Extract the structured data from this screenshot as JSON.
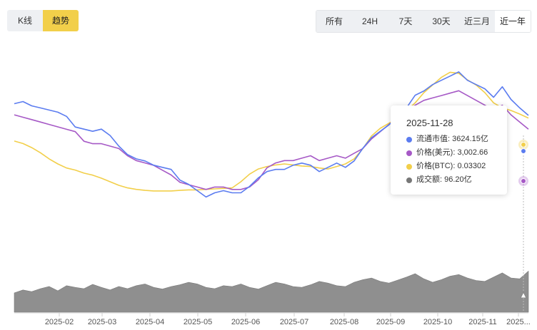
{
  "tabs_left": [
    {
      "label": "K线",
      "active": false
    },
    {
      "label": "趋势",
      "active": true
    }
  ],
  "tabs_right": [
    {
      "label": "所有",
      "active": false
    },
    {
      "label": "24H",
      "active": false
    },
    {
      "label": "7天",
      "active": false
    },
    {
      "label": "30天",
      "active": false
    },
    {
      "label": "近三月",
      "active": false
    },
    {
      "label": "近一年",
      "active": true
    }
  ],
  "tooltip": {
    "date": "2025-11-28",
    "rows": [
      {
        "label": "流通市值:",
        "value": "3624.15亿",
        "color": "#5b7cf0"
      },
      {
        "label": "价格(美元):",
        "value": "3,002.66",
        "color": "#a659c6"
      },
      {
        "label": "价格(BTC):",
        "value": "0.03302",
        "color": "#f2cf4a"
      },
      {
        "label": "成交额:",
        "value": "96.20亿",
        "color": "#777777"
      }
    ]
  },
  "chart_data": {
    "type": "line",
    "x_tick_labels": [
      "2025-02",
      "2025-03",
      "2025-04",
      "2025-05",
      "2025-06",
      "2025-07",
      "2025-08",
      "2025-09",
      "2025-10",
      "2025-11",
      "2025..."
    ],
    "axes_visible": false,
    "grid": false,
    "series": [
      {
        "name": "流通市值",
        "color": "#5b7cf0",
        "values": [
          3900,
          3950,
          3850,
          3800,
          3750,
          3700,
          3600,
          3350,
          3300,
          3250,
          3300,
          3150,
          2900,
          2700,
          2600,
          2550,
          2450,
          2400,
          2350,
          2100,
          2000,
          1850,
          1700,
          1800,
          1850,
          1800,
          1800,
          1950,
          2150,
          2300,
          2350,
          2350,
          2450,
          2500,
          2450,
          2300,
          2400,
          2500,
          2400,
          2550,
          2850,
          3100,
          3250,
          3400,
          3600,
          3800,
          4100,
          4200,
          4350,
          4450,
          4550,
          4650,
          4450,
          4350,
          4250,
          4050,
          4300,
          4000,
          3800,
          3624
        ]
      },
      {
        "name": "价格(美元)",
        "color": "#a659c6",
        "values": [
          3300,
          3250,
          3200,
          3150,
          3100,
          3050,
          3000,
          2950,
          2750,
          2700,
          2700,
          2650,
          2600,
          2450,
          2350,
          2300,
          2250,
          2150,
          2050,
          1900,
          1850,
          1800,
          1750,
          1800,
          1800,
          1750,
          1750,
          1800,
          1950,
          2200,
          2300,
          2350,
          2350,
          2400,
          2450,
          2350,
          2400,
          2450,
          2400,
          2500,
          2600,
          2800,
          2950,
          3100,
          3250,
          3400,
          3500,
          3600,
          3650,
          3700,
          3750,
          3800,
          3700,
          3600,
          3500,
          3400,
          3500,
          3300,
          3150,
          3002
        ]
      },
      {
        "name": "价格(BTC)",
        "color": "#f2cf4a",
        "values": [
          0.0285,
          0.028,
          0.0272,
          0.0262,
          0.025,
          0.024,
          0.0232,
          0.0228,
          0.0222,
          0.0218,
          0.0212,
          0.0205,
          0.0198,
          0.0193,
          0.019,
          0.0188,
          0.0187,
          0.0187,
          0.0187,
          0.0188,
          0.0189,
          0.0189,
          0.019,
          0.0191,
          0.0192,
          0.0193,
          0.0205,
          0.022,
          0.023,
          0.0235,
          0.0238,
          0.024,
          0.0238,
          0.0236,
          0.0235,
          0.0232,
          0.023,
          0.0235,
          0.024,
          0.025,
          0.027,
          0.0295,
          0.031,
          0.032,
          0.033,
          0.0345,
          0.036,
          0.038,
          0.0395,
          0.041,
          0.042,
          0.0418,
          0.0405,
          0.0395,
          0.038,
          0.036,
          0.035,
          0.0345,
          0.0338,
          0.033
        ]
      },
      {
        "name": "成交额",
        "color": "#8a8a8a",
        "values": [
          45,
          52,
          48,
          55,
          60,
          50,
          62,
          58,
          55,
          65,
          58,
          52,
          60,
          55,
          62,
          66,
          58,
          54,
          60,
          64,
          70,
          66,
          58,
          55,
          62,
          60,
          66,
          58,
          54,
          62,
          70,
          66,
          60,
          58,
          64,
          72,
          68,
          62,
          60,
          70,
          76,
          80,
          72,
          68,
          75,
          82,
          90,
          78,
          70,
          76,
          84,
          88,
          80,
          74,
          72,
          82,
          92,
          80,
          78,
          96
        ]
      }
    ]
  }
}
